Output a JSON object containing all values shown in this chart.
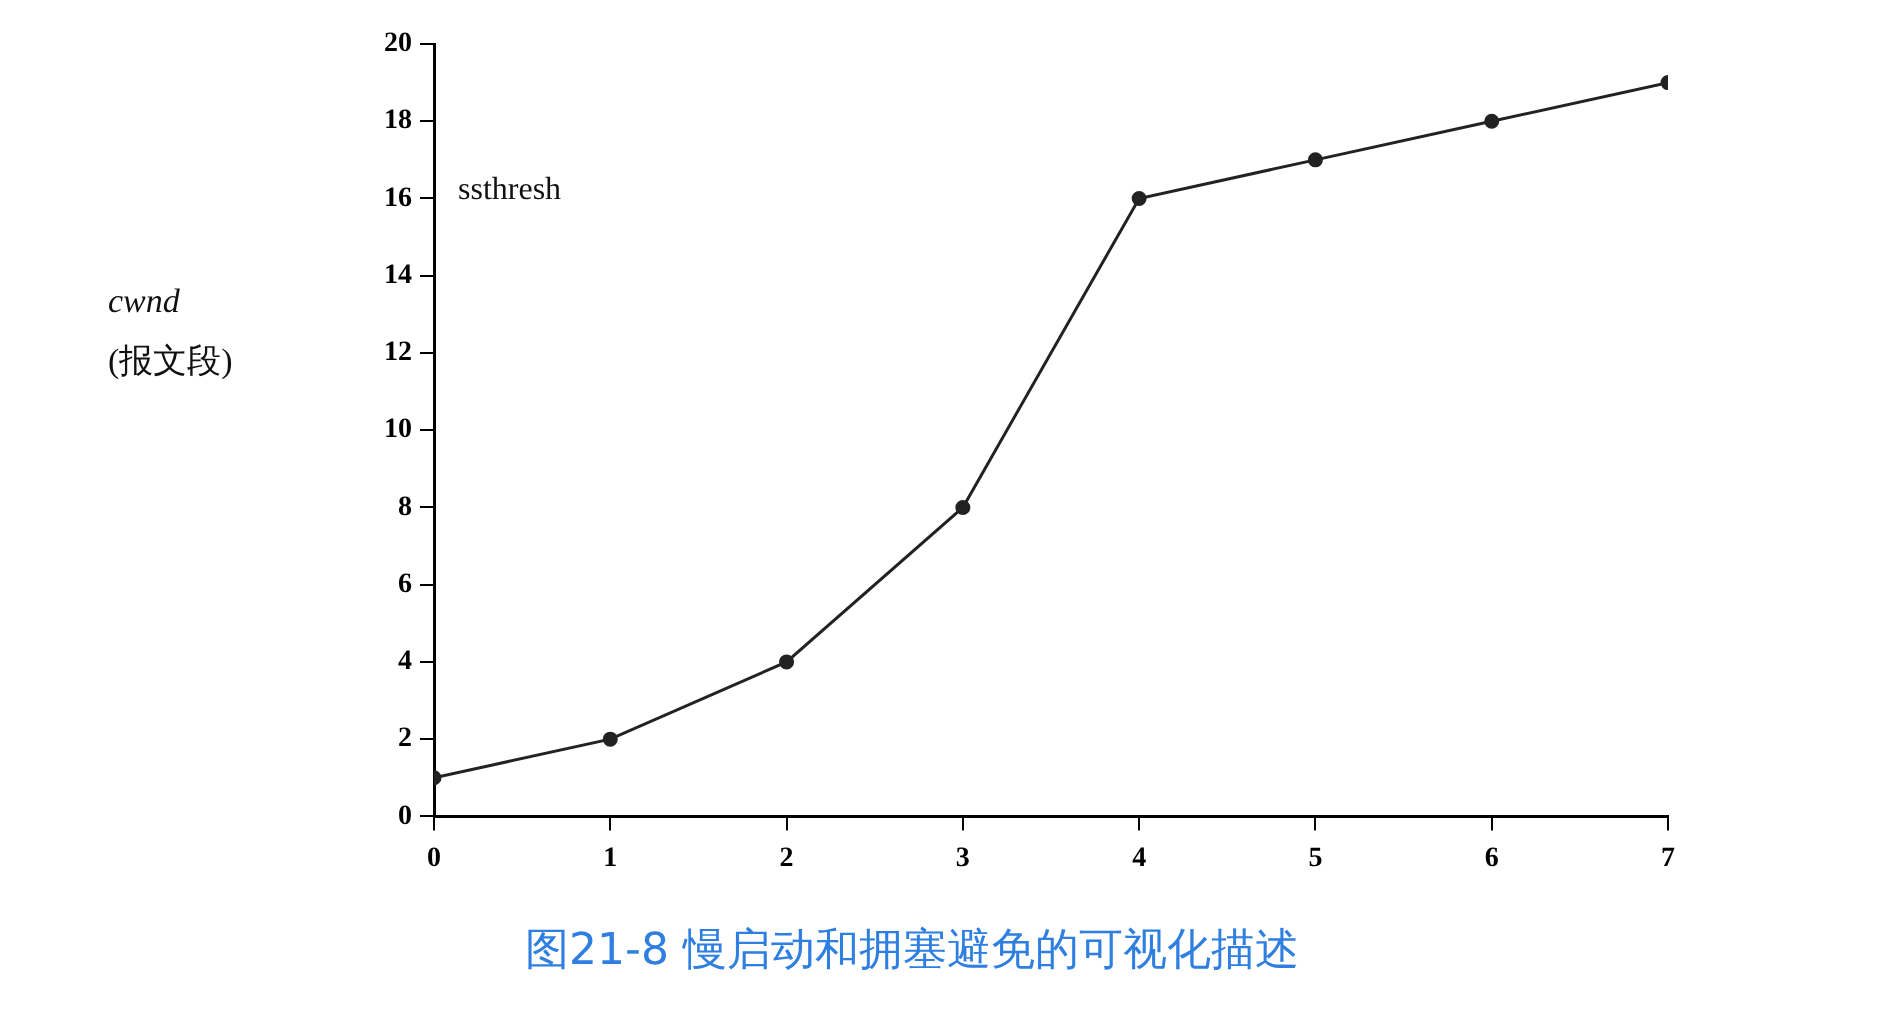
{
  "chart_data": {
    "type": "line",
    "title": "图21-8 慢启动和拥塞避免的可视化描述",
    "ylabel": "cwnd\n(报文段)",
    "x": [
      0,
      1,
      2,
      3,
      4,
      5,
      6,
      7
    ],
    "series": [
      {
        "color": "#222222",
        "values": [
          1,
          2,
          4,
          8,
          16,
          17,
          18,
          19
        ]
      }
    ],
    "xlim": [
      0,
      7
    ],
    "xticks": [
      0,
      1,
      2,
      3,
      4,
      5,
      6,
      7
    ],
    "ylim": [
      0,
      20
    ],
    "yticks": [
      0,
      2,
      4,
      6,
      8,
      10,
      12,
      14,
      16,
      18,
      20
    ],
    "annotations": [
      "ssthresh"
    ],
    "marker": "circle",
    "grid": false,
    "legend": false
  }
}
